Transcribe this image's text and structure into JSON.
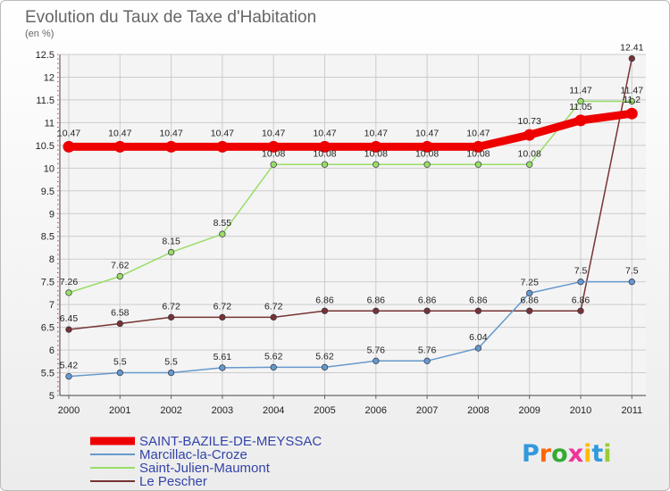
{
  "chart_data": {
    "type": "line",
    "title": "Evolution du Taux de Taxe d'Habitation",
    "subtitle": "(en %)",
    "x": [
      "2000",
      "2001",
      "2002",
      "2003",
      "2004",
      "2005",
      "2006",
      "2007",
      "2008",
      "2009",
      "2010",
      "2011"
    ],
    "ylim": [
      5,
      12.5
    ],
    "yticks": [
      "5",
      "5.5",
      "6",
      "6.5",
      "7",
      "7.5",
      "8",
      "8.5",
      "9",
      "9.5",
      "10",
      "10.5",
      "11",
      "11.5",
      "12",
      "12.5"
    ],
    "grid": true,
    "legend_position": "bottom-left",
    "series": [
      {
        "name": "SAINT-BAZILE-DE-MEYSSAC",
        "color": "#ee0000",
        "values": [
          10.47,
          10.47,
          10.47,
          10.47,
          10.47,
          10.47,
          10.47,
          10.47,
          10.47,
          10.73,
          11.05,
          11.2
        ],
        "labels": [
          "10.47",
          "10.47",
          "10.47",
          "10.47",
          "10.47",
          "10.47",
          "10.47",
          "10.47",
          "10.47",
          "10.73",
          "11.05",
          "11.2"
        ]
      },
      {
        "name": "Marcillac-la-Croze",
        "color": "#6699cc",
        "values": [
          5.42,
          5.5,
          5.5,
          5.61,
          5.62,
          5.62,
          5.76,
          5.76,
          6.04,
          7.25,
          7.5,
          7.5
        ],
        "labels": [
          "5.42",
          "5.5",
          "5.5",
          "5.61",
          "5.62",
          "5.62",
          "5.76",
          "5.76",
          "6.04",
          "7.25",
          "7.5",
          "7.5"
        ]
      },
      {
        "name": "Saint-Julien-Maumont",
        "color": "#99dd66",
        "values": [
          7.26,
          7.62,
          8.15,
          8.55,
          10.08,
          10.08,
          10.08,
          10.08,
          10.08,
          10.08,
          11.47,
          11.47
        ],
        "labels": [
          "7.26",
          "7.62",
          "8.15",
          "8.55",
          "10.08",
          "10.08",
          "10.08",
          "10.08",
          "10.08",
          "10.08",
          "11.47",
          "11.47"
        ]
      },
      {
        "name": "Le Pescher",
        "color": "#773333",
        "values": [
          6.45,
          6.58,
          6.72,
          6.72,
          6.72,
          6.86,
          6.86,
          6.86,
          6.86,
          6.86,
          6.86,
          12.41
        ],
        "labels": [
          "6.45",
          "6.58",
          "6.72",
          "6.72",
          "6.72",
          "6.86",
          "6.86",
          "6.86",
          "6.86",
          "6.86",
          "6.86",
          "12.41"
        ]
      }
    ]
  },
  "logo": {
    "letters": [
      "P",
      "r",
      "o",
      "x",
      "i",
      "t",
      "i"
    ],
    "colors": [
      "#3399dd",
      "#ff6600",
      "#33aa33",
      "#ee3399",
      "#ffbb00",
      "#3399dd",
      "#99cc33"
    ]
  }
}
